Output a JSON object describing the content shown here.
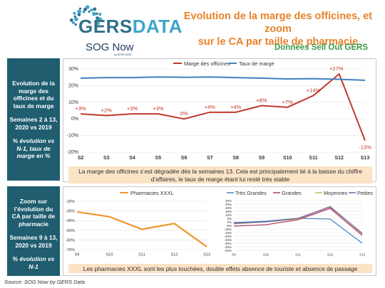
{
  "header": {
    "logo_gers": "GERS",
    "logo_data": "DATA",
    "title_line1": "Evolution de la marge des officines, et zoom",
    "title_line2": "sur le CA par taille de pharmacie",
    "sog": "SOG Now",
    "sog_sub": "by GERS DATA",
    "subtitle": "Données Sell Out GERS",
    "colors": {
      "orange": "#e8822a",
      "teal": "#1f5d6f",
      "green": "#3a9a45",
      "blue": "#3ca6c9"
    }
  },
  "section1": {
    "heading": "Evolution de la marge des officines et du taux de marge",
    "period": "Semaines 2 à 13, 2020 vs 2019",
    "note": "% évolution vs N-1, taux de marge en %",
    "comment": "La marge des officines s’est dégradée dès la semaines 13. Cela est principalement lié à la baisse du chiffre d’affaires, le taux de marge étant lui resté très stable"
  },
  "section2": {
    "heading": "Zoom sur l’évolution du CA par taille de pharmacie",
    "period": "Semaines 9 à 13, 2020 vs 2019",
    "note": "% évolution vs N-1",
    "comment": "Les pharmacies XXXL sont les plus touchées, double effets absence de touriste et absence de passage"
  },
  "source": "Source: SOG Now by GERS Data",
  "chart_data": [
    {
      "type": "line",
      "categories": [
        "S2",
        "S3",
        "S4",
        "S5",
        "S6",
        "S7",
        "S8",
        "S9",
        "S10",
        "S11",
        "S12",
        "S13"
      ],
      "series": [
        {
          "name": "Marge des officines",
          "color": "#c0392b",
          "values": [
            3,
            2,
            3,
            3,
            0,
            4,
            4,
            8,
            7,
            14,
            27,
            -13
          ],
          "labels": [
            "+3%",
            "+2%",
            "+3%",
            "+3%",
            "0%",
            "+4%",
            "+4%",
            "+8%",
            "+7%",
            "+14%",
            "+27%",
            "-13%"
          ]
        },
        {
          "name": "Taux de marge",
          "color": "#3f7fbf",
          "values": [
            24.5,
            24.8,
            24.8,
            25.2,
            25.0,
            25.2,
            24.8,
            24.5,
            24.0,
            24.2,
            23.8,
            23.2
          ]
        }
      ],
      "ylim": [
        -20,
        30
      ],
      "yticks": [
        "-20%",
        "-10%",
        "0%",
        "10%",
        "20%",
        "30%"
      ],
      "grid": true,
      "legend": "top"
    },
    {
      "type": "line",
      "categories": [
        "S9",
        "S10",
        "S11",
        "S12",
        "S13"
      ],
      "series": [
        {
          "name": "Pharmacies XXXL",
          "color": "#f0962e",
          "values": [
            -31,
            -36,
            -49,
            -43,
            -67
          ]
        }
      ],
      "ylim": [
        -70,
        -20
      ],
      "yticks": [
        "-20%",
        "-30%",
        "-40%",
        "-50%",
        "-60%",
        "-70%"
      ],
      "grid": true,
      "legend": "top"
    },
    {
      "type": "line",
      "categories": [
        "S9",
        "S10",
        "S11",
        "S12",
        "S13"
      ],
      "series": [
        {
          "name": "Très Grandes",
          "color": "#4a86c5",
          "values": [
            -1,
            1,
            5,
            4,
            -30
          ]
        },
        {
          "name": "Grandes",
          "color": "#b04060",
          "values": [
            -6,
            -4,
            3,
            19,
            -19
          ]
        },
        {
          "name": "Moyennes",
          "color": "#b5c25a",
          "values": [
            -3,
            0,
            4,
            22,
            -17
          ]
        },
        {
          "name": "Petites",
          "color": "#7a5ea8",
          "values": [
            -2,
            0,
            5,
            21,
            -16
          ]
        }
      ],
      "ylim": [
        -40,
        30
      ],
      "yticks": [
        "30%",
        "25%",
        "20%",
        "15%",
        "10%",
        "5%",
        "0%",
        "-5%",
        "-10%",
        "-15%",
        "-20%",
        "-25%",
        "-30%",
        "-35%",
        "-40%"
      ],
      "grid": true,
      "legend": "top"
    }
  ]
}
